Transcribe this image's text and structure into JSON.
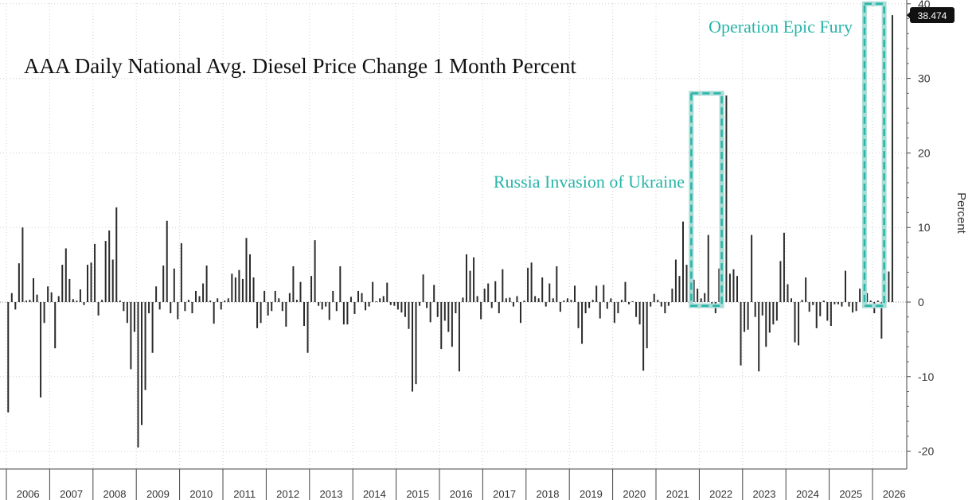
{
  "chart_data": {
    "type": "bar",
    "title": "AAA Daily National Avg. Diesel Price Change 1 Month Percent",
    "ylabel": "Percent",
    "ylim": [
      -22,
      40
    ],
    "y_ticks": [
      40,
      30,
      20,
      10,
      0,
      -10,
      -20
    ],
    "grid": true,
    "axis_side": "right",
    "years": [
      "2006",
      "2007",
      "2008",
      "2009",
      "2010",
      "2011",
      "2012",
      "2013",
      "2014",
      "2015",
      "2016",
      "2017",
      "2018",
      "2019",
      "2020",
      "2021",
      "2022",
      "2023",
      "2024",
      "2025",
      "2026"
    ],
    "x_start": "2006-01",
    "last_value_label": "38.474",
    "series": [
      {
        "values": [
          -14.8,
          1.2,
          -1.0,
          5.2,
          10.0,
          0.2,
          0.3,
          3.2,
          1.0,
          -12.8,
          -2.8,
          2.1,
          1.3,
          -6.2,
          0.8,
          5.0,
          7.2,
          3.1,
          0.4,
          0.2,
          1.7,
          -0.4,
          5.0,
          5.3,
          7.8,
          -1.8,
          0.3,
          8.2,
          9.6,
          5.7,
          12.7,
          0.2,
          -1.2,
          -2.8,
          -9.0,
          -4.0,
          -19.5,
          -16.5,
          -11.8,
          -1.5,
          -6.8,
          2.1,
          -1.0,
          4.9,
          10.9,
          -1.5,
          4.5,
          -2.3,
          7.9,
          -1.2,
          0.3,
          -1.5,
          1.5,
          0.8,
          2.5,
          4.9,
          0.2,
          -2.9,
          0.5,
          -1.0,
          0.2,
          0.5,
          3.8,
          3.3,
          4.3,
          3.1,
          8.6,
          6.4,
          3.3,
          -3.5,
          -2.8,
          1.5,
          -1.8,
          -1.2,
          1.5,
          0.5,
          -1.2,
          -3.3,
          1.2,
          4.8,
          0.3,
          2.7,
          -3.2,
          -6.8,
          3.5,
          8.3,
          -0.5,
          -1.0,
          -0.6,
          -2.4,
          1.5,
          -1.2,
          4.8,
          -3.0,
          -3.0,
          0.7,
          -1.6,
          1.5,
          1.2,
          -1.1,
          -0.6,
          2.7,
          0.1,
          0.5,
          0.8,
          2.6,
          -0.4,
          -0.5,
          -1.0,
          -1.4,
          -2.0,
          -3.6,
          -12.0,
          -11.0,
          -0.5,
          3.7,
          -0.8,
          -2.7,
          2.3,
          -2.0,
          -6.3,
          -2.5,
          -4.0,
          -6.0,
          -1.5,
          -9.3,
          0.6,
          6.4,
          4.2,
          6.0,
          0.8,
          -2.3,
          1.8,
          2.5,
          -0.8,
          2.8,
          -1.5,
          4.4,
          0.5,
          0.6,
          -0.6,
          0.8,
          -2.8,
          0.2,
          4.6,
          5.3,
          0.8,
          0.5,
          3.3,
          -0.6,
          2.5,
          0.5,
          4.8,
          -1.3,
          0.2,
          0.5,
          0.3,
          2.2,
          -3.5,
          -5.6,
          -1.5,
          -0.8,
          0.3,
          2.2,
          -2.2,
          2.3,
          -0.9,
          0.5,
          -2.8,
          -1.5,
          0.3,
          2.7,
          -0.3,
          0.1,
          -2.0,
          -3.0,
          -9.2,
          -6.2,
          -0.6,
          1.1,
          0.3,
          -0.6,
          -1.5,
          -0.5,
          1.8,
          5.7,
          3.5,
          10.8,
          5.0,
          -0.5,
          3.0,
          1.8,
          0.5,
          1.2,
          9.0,
          -0.8,
          -1.5,
          4.5,
          7.6,
          27.7,
          3.8,
          4.4,
          3.5,
          -8.5,
          -4.0,
          -3.7,
          9.0,
          -2.0,
          -9.3,
          -1.8,
          -6.0,
          -4.1,
          -3.0,
          -2.5,
          5.5,
          9.3,
          2.4,
          0.5,
          -5.4,
          -5.8,
          0.3,
          3.3,
          -1.3,
          -0.4,
          -3.5,
          -1.9,
          0.2,
          -2.5,
          -3.2,
          -0.3,
          -0.3,
          -0.6,
          4.2,
          -0.6,
          -1.4,
          -1.2,
          1.8,
          5.0,
          1.2,
          0.2,
          -1.5,
          0.2,
          -4.9,
          1.5,
          4.1,
          38.474
        ]
      }
    ],
    "annotations": [
      {
        "text": "Russia Invasion of Ukraine",
        "start": "2021-11",
        "end": "2022-06",
        "ymin": -0.5,
        "ymax": 28
      },
      {
        "text": "Operation Epic Fury",
        "start": "2025-11",
        "end": "2026-03",
        "ymin": -0.5,
        "ymax": 40
      }
    ]
  },
  "colors": {
    "bar": "#2b2b2b",
    "annotation": "#28b5a8",
    "annotation_fill": "#a9dcd6",
    "grid": "#cfcfcf",
    "last_label_bg": "#111111"
  }
}
